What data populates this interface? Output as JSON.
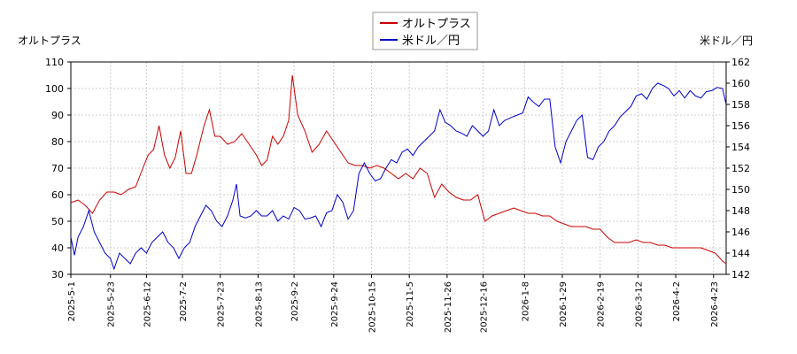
{
  "chart_data": {
    "type": "line",
    "title": "",
    "legend": {
      "position": "top-center",
      "entries": [
        {
          "name": "オルトプラス",
          "color": "#cc0000"
        },
        {
          "name": "米ドル／円",
          "color": "#0000cc"
        }
      ]
    },
    "axes": {
      "left": {
        "label": "オルトプラス",
        "ylim": [
          30,
          110
        ],
        "ticks": [
          "30",
          "40",
          "50",
          "60",
          "70",
          "80",
          "90",
          "100",
          "110"
        ],
        "tick_color": "#cc0000"
      },
      "right": {
        "label": "米ドル／円",
        "ylim": [
          142,
          162
        ],
        "ticks": [
          "142",
          "144",
          "146",
          "148",
          "150",
          "152",
          "154",
          "156",
          "158",
          "160",
          "162"
        ],
        "tick_color": "#0000cc"
      },
      "x": {
        "start": "2025-05-01",
        "end": "2026-04-30",
        "ticks": [
          "2025-5-1",
          "2025-5-23",
          "2025-6-12",
          "2025-7-2",
          "2025-7-23",
          "2025-8-13",
          "2025-9-2",
          "2025-9-24",
          "2025-10-15",
          "2025-11-5",
          "2025-11-26",
          "2025-12-16",
          "2026-1-8",
          "2026-1-29",
          "2026-2-19",
          "2026-3-12",
          "2026-4-2",
          "2026-4-23"
        ]
      }
    },
    "grid": true,
    "series": [
      {
        "name": "オルトプラス",
        "axis": "left",
        "color": "#cc0000",
        "points": [
          [
            "2025-05-01",
            57
          ],
          [
            "2025-05-05",
            58
          ],
          [
            "2025-05-09",
            56
          ],
          [
            "2025-05-13",
            53
          ],
          [
            "2025-05-17",
            58
          ],
          [
            "2025-05-21",
            61
          ],
          [
            "2025-05-25",
            61
          ],
          [
            "2025-05-29",
            60
          ],
          [
            "2025-06-02",
            62
          ],
          [
            "2025-06-06",
            63
          ],
          [
            "2025-06-10",
            70
          ],
          [
            "2025-06-13",
            75
          ],
          [
            "2025-06-16",
            77
          ],
          [
            "2025-06-19",
            86
          ],
          [
            "2025-06-22",
            75
          ],
          [
            "2025-06-25",
            70
          ],
          [
            "2025-06-28",
            74
          ],
          [
            "2025-07-01",
            84
          ],
          [
            "2025-07-04",
            68
          ],
          [
            "2025-07-07",
            68
          ],
          [
            "2025-07-10",
            75
          ],
          [
            "2025-07-14",
            86
          ],
          [
            "2025-07-17",
            92
          ],
          [
            "2025-07-20",
            82
          ],
          [
            "2025-07-23",
            82
          ],
          [
            "2025-07-27",
            79
          ],
          [
            "2025-07-31",
            80
          ],
          [
            "2025-08-04",
            83
          ],
          [
            "2025-08-08",
            79
          ],
          [
            "2025-08-12",
            75
          ],
          [
            "2025-08-15",
            71
          ],
          [
            "2025-08-18",
            73
          ],
          [
            "2025-08-21",
            82
          ],
          [
            "2025-08-24",
            79
          ],
          [
            "2025-08-27",
            82
          ],
          [
            "2025-08-30",
            88
          ],
          [
            "2025-09-01",
            105
          ],
          [
            "2025-09-04",
            90
          ],
          [
            "2025-09-08",
            84
          ],
          [
            "2025-09-12",
            76
          ],
          [
            "2025-09-16",
            79
          ],
          [
            "2025-09-20",
            84
          ],
          [
            "2025-09-24",
            80
          ],
          [
            "2025-09-28",
            76
          ],
          [
            "2025-10-02",
            72
          ],
          [
            "2025-10-06",
            71
          ],
          [
            "2025-10-10",
            71
          ],
          [
            "2025-10-14",
            70
          ],
          [
            "2025-10-18",
            71
          ],
          [
            "2025-10-22",
            70
          ],
          [
            "2025-10-26",
            68
          ],
          [
            "2025-10-30",
            66
          ],
          [
            "2025-11-03",
            68
          ],
          [
            "2025-11-07",
            66
          ],
          [
            "2025-11-11",
            70
          ],
          [
            "2025-11-15",
            68
          ],
          [
            "2025-11-19",
            59
          ],
          [
            "2025-11-23",
            64
          ],
          [
            "2025-11-27",
            61
          ],
          [
            "2025-12-01",
            59
          ],
          [
            "2025-12-05",
            58
          ],
          [
            "2025-12-09",
            58
          ],
          [
            "2025-12-13",
            60
          ],
          [
            "2025-12-17",
            50
          ],
          [
            "2025-12-21",
            52
          ],
          [
            "2025-12-25",
            53
          ],
          [
            "2025-12-29",
            54
          ],
          [
            "2026-01-02",
            55
          ],
          [
            "2026-01-06",
            54
          ],
          [
            "2026-01-10",
            53
          ],
          [
            "2026-01-14",
            53
          ],
          [
            "2026-01-18",
            52
          ],
          [
            "2026-01-22",
            52
          ],
          [
            "2026-01-26",
            50
          ],
          [
            "2026-01-30",
            49
          ],
          [
            "2026-02-03",
            48
          ],
          [
            "2026-02-07",
            48
          ],
          [
            "2026-02-11",
            48
          ],
          [
            "2026-02-15",
            47
          ],
          [
            "2026-02-19",
            47
          ],
          [
            "2026-02-23",
            44
          ],
          [
            "2026-02-27",
            42
          ],
          [
            "2026-03-03",
            42
          ],
          [
            "2026-03-07",
            42
          ],
          [
            "2026-03-11",
            43
          ],
          [
            "2026-03-15",
            42
          ],
          [
            "2026-03-19",
            42
          ],
          [
            "2026-03-23",
            41
          ],
          [
            "2026-03-27",
            41
          ],
          [
            "2026-03-31",
            40
          ],
          [
            "2026-04-04",
            40
          ],
          [
            "2026-04-08",
            40
          ],
          [
            "2026-04-12",
            40
          ],
          [
            "2026-04-16",
            40
          ],
          [
            "2026-04-20",
            39
          ],
          [
            "2026-04-24",
            38
          ],
          [
            "2026-04-28",
            35
          ],
          [
            "2026-04-30",
            34
          ]
        ]
      },
      {
        "name": "米ドル／円",
        "axis": "right",
        "color": "#0000cc",
        "points": [
          [
            "2025-05-01",
            145.5
          ],
          [
            "2025-05-03",
            143.8
          ],
          [
            "2025-05-05",
            145.5
          ],
          [
            "2025-05-08",
            146.5
          ],
          [
            "2025-05-11",
            148
          ],
          [
            "2025-05-14",
            146
          ],
          [
            "2025-05-17",
            145
          ],
          [
            "2025-05-20",
            144
          ],
          [
            "2025-05-23",
            143.5
          ],
          [
            "2025-05-25",
            142.5
          ],
          [
            "2025-05-28",
            144
          ],
          [
            "2025-05-31",
            143.5
          ],
          [
            "2025-06-03",
            143
          ],
          [
            "2025-06-06",
            144
          ],
          [
            "2025-06-09",
            144.5
          ],
          [
            "2025-06-12",
            144
          ],
          [
            "2025-06-15",
            145
          ],
          [
            "2025-06-18",
            145.5
          ],
          [
            "2025-06-21",
            146
          ],
          [
            "2025-06-24",
            145
          ],
          [
            "2025-06-27",
            144.5
          ],
          [
            "2025-06-30",
            143.5
          ],
          [
            "2025-07-03",
            144.5
          ],
          [
            "2025-07-06",
            145
          ],
          [
            "2025-07-09",
            146.5
          ],
          [
            "2025-07-12",
            147.5
          ],
          [
            "2025-07-15",
            148.5
          ],
          [
            "2025-07-18",
            148
          ],
          [
            "2025-07-21",
            147
          ],
          [
            "2025-07-24",
            146.5
          ],
          [
            "2025-07-27",
            147.5
          ],
          [
            "2025-07-30",
            149
          ],
          [
            "2025-08-01",
            150.5
          ],
          [
            "2025-08-03",
            147.5
          ],
          [
            "2025-08-06",
            147.3
          ],
          [
            "2025-08-09",
            147.5
          ],
          [
            "2025-08-12",
            148
          ],
          [
            "2025-08-15",
            147.5
          ],
          [
            "2025-08-18",
            147.5
          ],
          [
            "2025-08-21",
            148
          ],
          [
            "2025-08-24",
            147
          ],
          [
            "2025-08-27",
            147.5
          ],
          [
            "2025-08-30",
            147.2
          ],
          [
            "2025-09-02",
            148.3
          ],
          [
            "2025-09-05",
            148
          ],
          [
            "2025-09-08",
            147.2
          ],
          [
            "2025-09-11",
            147.3
          ],
          [
            "2025-09-14",
            147.5
          ],
          [
            "2025-09-17",
            146.5
          ],
          [
            "2025-09-20",
            147.8
          ],
          [
            "2025-09-23",
            148
          ],
          [
            "2025-09-26",
            149.5
          ],
          [
            "2025-09-29",
            148.8
          ],
          [
            "2025-10-02",
            147.2
          ],
          [
            "2025-10-05",
            148
          ],
          [
            "2025-10-08",
            151.5
          ],
          [
            "2025-10-11",
            152.5
          ],
          [
            "2025-10-14",
            151.5
          ],
          [
            "2025-10-17",
            150.8
          ],
          [
            "2025-10-20",
            151
          ],
          [
            "2025-10-23",
            152
          ],
          [
            "2025-10-26",
            152.8
          ],
          [
            "2025-10-29",
            152.5
          ],
          [
            "2025-11-01",
            153.5
          ],
          [
            "2025-11-04",
            153.8
          ],
          [
            "2025-11-07",
            153.2
          ],
          [
            "2025-11-10",
            154
          ],
          [
            "2025-11-13",
            154.5
          ],
          [
            "2025-11-16",
            155
          ],
          [
            "2025-11-19",
            155.5
          ],
          [
            "2025-11-22",
            157.5
          ],
          [
            "2025-11-25",
            156.3
          ],
          [
            "2025-11-28",
            156
          ],
          [
            "2025-12-01",
            155.5
          ],
          [
            "2025-12-04",
            155.3
          ],
          [
            "2025-12-07",
            155
          ],
          [
            "2025-12-10",
            156
          ],
          [
            "2025-12-13",
            155.5
          ],
          [
            "2025-12-16",
            155
          ],
          [
            "2025-12-19",
            155.5
          ],
          [
            "2025-12-22",
            157.5
          ],
          [
            "2025-12-25",
            156
          ],
          [
            "2025-12-28",
            156.5
          ],
          [
            "2026-01-01",
            156.8
          ],
          [
            "2026-01-04",
            157
          ],
          [
            "2026-01-07",
            157.2
          ],
          [
            "2026-01-10",
            158.7
          ],
          [
            "2026-01-13",
            158.2
          ],
          [
            "2026-01-16",
            157.8
          ],
          [
            "2026-01-19",
            158.5
          ],
          [
            "2026-01-22",
            158.5
          ],
          [
            "2026-01-25",
            154
          ],
          [
            "2026-01-28",
            152.5
          ],
          [
            "2026-01-31",
            154.5
          ],
          [
            "2026-02-03",
            155.5
          ],
          [
            "2026-02-06",
            156.5
          ],
          [
            "2026-02-09",
            157
          ],
          [
            "2026-02-12",
            153
          ],
          [
            "2026-02-15",
            152.8
          ],
          [
            "2026-02-18",
            154
          ],
          [
            "2026-02-21",
            154.5
          ],
          [
            "2026-02-24",
            155.5
          ],
          [
            "2026-02-27",
            156
          ],
          [
            "2026-03-02",
            156.8
          ],
          [
            "2026-03-05",
            157.3
          ],
          [
            "2026-03-08",
            157.8
          ],
          [
            "2026-03-11",
            158.8
          ],
          [
            "2026-03-14",
            159
          ],
          [
            "2026-03-17",
            158.5
          ],
          [
            "2026-03-20",
            159.5
          ],
          [
            "2026-03-23",
            160
          ],
          [
            "2026-03-26",
            159.8
          ],
          [
            "2026-03-29",
            159.5
          ],
          [
            "2026-04-01",
            158.8
          ],
          [
            "2026-04-04",
            159.3
          ],
          [
            "2026-04-07",
            158.6
          ],
          [
            "2026-04-10",
            159.3
          ],
          [
            "2026-04-13",
            158.8
          ],
          [
            "2026-04-16",
            158.6
          ],
          [
            "2026-04-19",
            159.2
          ],
          [
            "2026-04-22",
            159.3
          ],
          [
            "2026-04-25",
            159.6
          ],
          [
            "2026-04-28",
            159.5
          ],
          [
            "2026-04-30",
            158
          ]
        ]
      }
    ]
  }
}
